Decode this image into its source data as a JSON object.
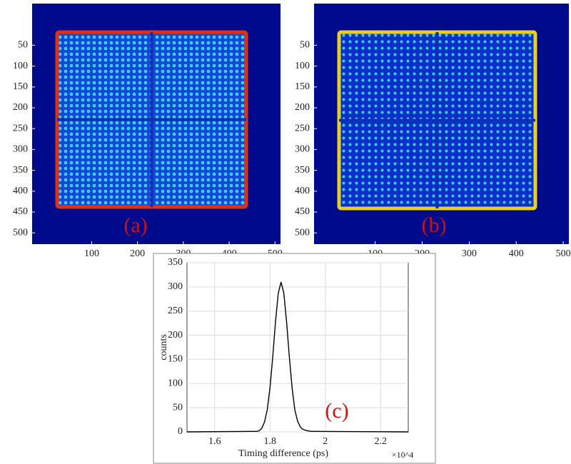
{
  "chart_data": [
    {
      "type": "heatmap",
      "annotation": "(a)",
      "xlim": [
        -30,
        512
      ],
      "ylim": [
        -50,
        527
      ],
      "xticks": [
        100,
        200,
        300,
        400,
        500
      ],
      "yticks": [
        50,
        100,
        150,
        200,
        250,
        300,
        350,
        400,
        450,
        500
      ]
    },
    {
      "type": "heatmap",
      "annotation": "(b)",
      "xlim": [
        -30,
        512
      ],
      "ylim": [
        -50,
        527
      ],
      "xticks": [
        100,
        200,
        300,
        400,
        500
      ],
      "yticks": [
        50,
        100,
        150,
        200,
        250,
        300,
        350,
        400,
        450,
        500
      ]
    },
    {
      "type": "line",
      "annotation": "(c)",
      "x_label": "Timing difference (ps)",
      "x_multiplier": "×10^4",
      "y_label": "counts",
      "color": "#000000",
      "grid": true,
      "xlim": [
        1.5,
        2.3
      ],
      "xticks": [
        1.6,
        1.8,
        2,
        2.2
      ],
      "ylim": [
        0,
        350
      ],
      "yticks": [
        0,
        50,
        100,
        150,
        200,
        250,
        300,
        350
      ],
      "x": [
        1.5,
        1.74,
        1.75,
        1.76,
        1.77,
        1.78,
        1.79,
        1.8,
        1.81,
        1.82,
        1.83,
        1.84,
        1.85,
        1.86,
        1.87,
        1.88,
        1.89,
        1.9,
        1.91,
        1.92,
        1.93,
        1.94,
        1.95,
        1.96,
        2.3
      ],
      "values": [
        0,
        1,
        1,
        2,
        7,
        20,
        45,
        91,
        155,
        228,
        287,
        310,
        287,
        228,
        155,
        91,
        45,
        22,
        10,
        5,
        3,
        2,
        1,
        1,
        0
      ]
    }
  ]
}
